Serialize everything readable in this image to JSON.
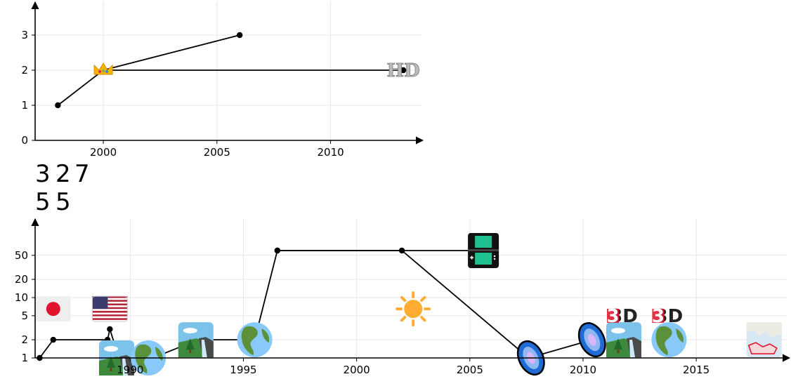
{
  "chart_data": [
    {
      "type": "line",
      "title": "",
      "xlabel": "",
      "ylabel": "",
      "x_ticks": [
        "2000",
        "2005",
        "2010"
      ],
      "y_ticks": [
        "0",
        "1",
        "2",
        "3"
      ],
      "xlim": [
        1997,
        2014
      ],
      "ylim": [
        0,
        4
      ],
      "grid": true,
      "series": [
        {
          "name": "",
          "points": [
            [
              1998,
              1
            ],
            [
              2000,
              2
            ],
            [
              2006,
              3
            ]
          ]
        },
        {
          "name": "",
          "points": [
            [
              2000,
              2
            ],
            [
              2013.2,
              2
            ]
          ]
        }
      ],
      "markers": [
        {
          "icon": "crown-icon",
          "x": 2000,
          "y": 2
        },
        {
          "icon": "hd-logo",
          "label": "HD",
          "x": 2013.2,
          "y": 2
        }
      ]
    },
    {
      "type": "line",
      "title": "",
      "xlabel": "",
      "ylabel": "",
      "scale": "log",
      "x_ticks": [
        "1990",
        "1995",
        "2000",
        "2005",
        "2010",
        "2015"
      ],
      "y_ticks": [
        "1",
        "2",
        "5",
        "10",
        "20",
        "50"
      ],
      "xlim": [
        1985.8,
        2019
      ],
      "ylim": [
        1,
        200
      ],
      "grid": true,
      "series": [
        {
          "name": "",
          "points": [
            [
              1986,
              1
            ],
            [
              1986.6,
              2
            ],
            [
              1989,
              2
            ],
            [
              1989.1,
              3
            ],
            [
              1989.5,
              1
            ]
          ]
        },
        {
          "name": "",
          "points": [
            [
              1991,
              1
            ],
            [
              1993,
              2
            ],
            [
              1995.5,
              2
            ],
            [
              1996.5,
              60
            ],
            [
              2002,
              60
            ],
            [
              2007.6,
              1
            ],
            [
              2010.4,
              2
            ]
          ]
        },
        {
          "name": "",
          "points": [
            [
              1996.5,
              60
            ],
            [
              2005.6,
              60
            ]
          ]
        }
      ],
      "markers": [
        {
          "icon": "japan-flag-icon",
          "x": 1986.6,
          "y": 6.5
        },
        {
          "icon": "usa-flag-icon",
          "x": 1989.1,
          "y": 6.5
        },
        {
          "icon": "waterfall-photo-icon",
          "x": 1989.4,
          "y": 1
        },
        {
          "icon": "globe-americas-icon",
          "x": 1990.8,
          "y": 1
        },
        {
          "icon": "waterfall-photo-icon",
          "x": 1992.9,
          "y": 2
        },
        {
          "icon": "globe-americas-icon",
          "x": 1995.5,
          "y": 2
        },
        {
          "icon": "nintendo-ds-icon",
          "x": 2005.6,
          "y": 60
        },
        {
          "icon": "sun-icon",
          "x": 2002.5,
          "y": 6.5
        },
        {
          "icon": "galaxy-icon",
          "x": 2007.7,
          "y": 1
        },
        {
          "icon": "galaxy-icon",
          "x": 2010.4,
          "y": 2
        },
        {
          "icon": "waterfall-photo-icon",
          "x": 2011.8,
          "y": 2
        },
        {
          "icon": "3d-logo-icon",
          "label": "3D",
          "x": 2011.8,
          "y": 5
        },
        {
          "icon": "globe-americas-icon",
          "x": 2013.8,
          "y": 2
        },
        {
          "icon": "3d-logo-icon",
          "label": "3D",
          "x": 2013.8,
          "y": 5
        },
        {
          "icon": "europe-map-icon",
          "x": 2018,
          "y": 2
        }
      ]
    }
  ],
  "floating_numbers": {
    "row1": [
      "3",
      "2",
      "7"
    ],
    "row2": [
      "5",
      "5"
    ]
  }
}
